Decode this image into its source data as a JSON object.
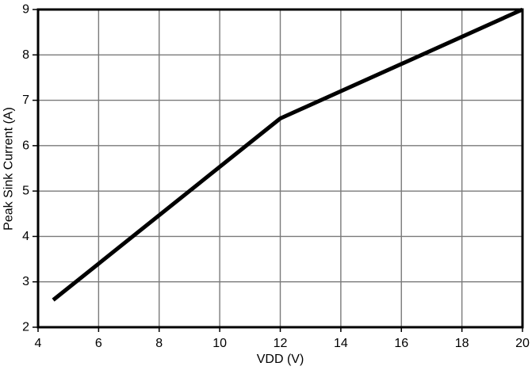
{
  "chart_data": {
    "type": "line",
    "title": "",
    "xlabel": "VDD (V)",
    "ylabel": "Peak Sink Current (A)",
    "xlim": [
      4,
      20
    ],
    "ylim": [
      2,
      9
    ],
    "xticks": [
      4,
      6,
      8,
      10,
      12,
      14,
      16,
      18,
      20
    ],
    "yticks": [
      2,
      3,
      4,
      5,
      6,
      7,
      8,
      9
    ],
    "grid": true,
    "legend_position": "none",
    "series": [
      {
        "name": "Peak Sink Current",
        "points": [
          [
            4.5,
            2.6
          ],
          [
            12.0,
            6.6
          ],
          [
            20.0,
            9.0
          ]
        ]
      }
    ],
    "colors": {
      "line": "#000000",
      "grid": "#7a7a7a",
      "frame": "#000000",
      "text": "#000000",
      "background": "#ffffff"
    }
  }
}
